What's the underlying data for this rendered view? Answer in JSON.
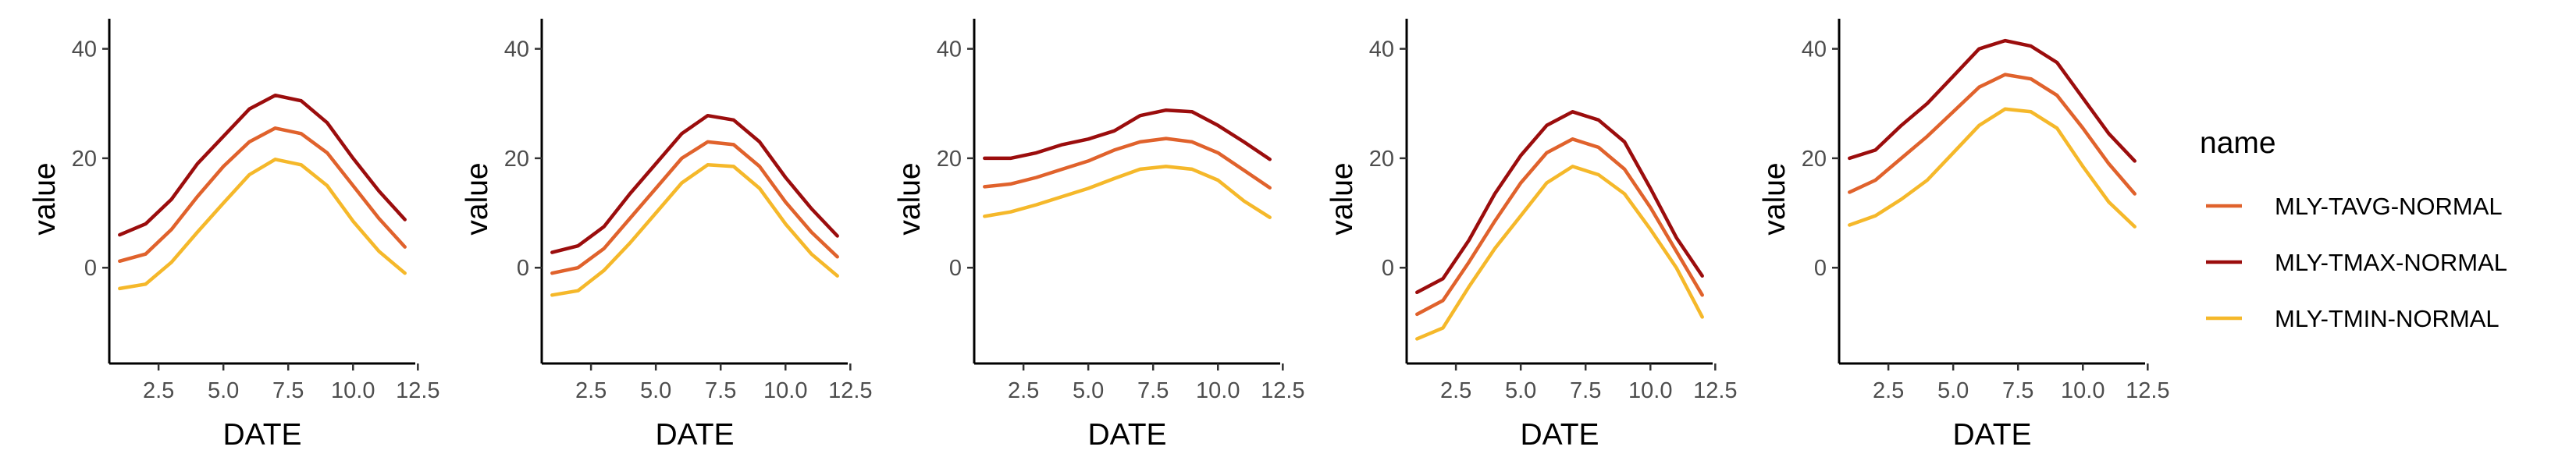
{
  "legend": {
    "title": "name",
    "placement": "right"
  },
  "colors": {
    "MLY-TAVG-NORMAL": "#e0622c",
    "MLY-TMAX-NORMAL": "#9b0d0d",
    "MLY-TMIN-NORMAL": "#f5b82a"
  },
  "chart_data": [
    {
      "type": "line",
      "xlabel": "DATE",
      "ylabel": "value",
      "xlim": [
        0.6,
        12.4
      ],
      "ylim": [
        -17.5,
        45.5
      ],
      "xticks": [
        "2.5",
        "5.0",
        "7.5",
        "10.0",
        "12.5"
      ],
      "yticks": [
        "0",
        "20",
        "40"
      ],
      "grid": false,
      "x": [
        1,
        2,
        3,
        4,
        5,
        6,
        7,
        8,
        9,
        10,
        11,
        12
      ],
      "series": [
        {
          "name": "MLY-TAVG-NORMAL",
          "values": [
            1.2,
            2.5,
            7,
            13,
            18.5,
            23,
            25.5,
            24.5,
            21,
            15,
            9,
            3.8
          ]
        },
        {
          "name": "MLY-TMAX-NORMAL",
          "values": [
            6,
            8,
            12.5,
            19,
            24,
            29,
            31.5,
            30.5,
            26.5,
            20,
            14,
            8.8
          ]
        },
        {
          "name": "MLY-TMIN-NORMAL",
          "values": [
            -3.8,
            -3,
            1,
            6.5,
            11.8,
            17,
            19.8,
            18.8,
            15,
            8.5,
            3,
            -1
          ]
        }
      ]
    },
    {
      "type": "line",
      "xlabel": "DATE",
      "ylabel": "value",
      "xlim": [
        0.6,
        12.4
      ],
      "ylim": [
        -17.5,
        45.5
      ],
      "xticks": [
        "2.5",
        "5.0",
        "7.5",
        "10.0",
        "12.5"
      ],
      "yticks": [
        "0",
        "20",
        "40"
      ],
      "grid": false,
      "x": [
        1,
        2,
        3,
        4,
        5,
        6,
        7,
        8,
        9,
        10,
        11,
        12
      ],
      "series": [
        {
          "name": "MLY-TAVG-NORMAL",
          "values": [
            -1,
            0,
            3.5,
            9,
            14.5,
            20,
            23,
            22.5,
            18.5,
            12,
            6.5,
            2
          ]
        },
        {
          "name": "MLY-TMAX-NORMAL",
          "values": [
            2.8,
            4,
            7.5,
            13.5,
            19,
            24.5,
            27.8,
            27,
            23,
            16.5,
            10.8,
            5.8
          ]
        },
        {
          "name": "MLY-TMIN-NORMAL",
          "values": [
            -5,
            -4.2,
            -0.5,
            4.5,
            10,
            15.5,
            18.8,
            18.5,
            14.5,
            8,
            2.5,
            -1.5
          ]
        }
      ]
    },
    {
      "type": "line",
      "xlabel": "DATE",
      "ylabel": "value",
      "xlim": [
        0.6,
        12.4
      ],
      "ylim": [
        -17.5,
        45.5
      ],
      "xticks": [
        "2.5",
        "5.0",
        "7.5",
        "10.0",
        "12.5"
      ],
      "yticks": [
        "0",
        "20",
        "40"
      ],
      "grid": false,
      "x": [
        1,
        2,
        3,
        4,
        5,
        6,
        7,
        8,
        9,
        10,
        11,
        12
      ],
      "series": [
        {
          "name": "MLY-TAVG-NORMAL",
          "values": [
            14.8,
            15.3,
            16.5,
            18,
            19.5,
            21.5,
            23,
            23.6,
            23,
            21,
            17.8,
            14.6
          ]
        },
        {
          "name": "MLY-TMAX-NORMAL",
          "values": [
            20,
            20,
            21,
            22.5,
            23.5,
            25,
            27.8,
            28.8,
            28.5,
            26,
            23,
            19.8
          ]
        },
        {
          "name": "MLY-TMIN-NORMAL",
          "values": [
            9.4,
            10.2,
            11.5,
            13,
            14.5,
            16.3,
            18,
            18.5,
            18,
            16,
            12.2,
            9.2
          ]
        }
      ]
    },
    {
      "type": "line",
      "xlabel": "DATE",
      "ylabel": "value",
      "xlim": [
        0.6,
        12.4
      ],
      "ylim": [
        -17.5,
        45.5
      ],
      "xticks": [
        "2.5",
        "5.0",
        "7.5",
        "10.0",
        "12.5"
      ],
      "yticks": [
        "0",
        "20",
        "40"
      ],
      "grid": false,
      "x": [
        1,
        2,
        3,
        4,
        5,
        6,
        7,
        8,
        9,
        10,
        11,
        12
      ],
      "series": [
        {
          "name": "MLY-TAVG-NORMAL",
          "values": [
            -8.5,
            -6,
            1,
            8.5,
            15.5,
            21,
            23.5,
            22,
            18,
            11,
            3,
            -5
          ]
        },
        {
          "name": "MLY-TMAX-NORMAL",
          "values": [
            -4.5,
            -2,
            5,
            13.5,
            20.5,
            26,
            28.5,
            27,
            23,
            14.5,
            5.5,
            -1.5
          ]
        },
        {
          "name": "MLY-TMIN-NORMAL",
          "values": [
            -13,
            -11,
            -3.5,
            3.5,
            9.5,
            15.5,
            18.5,
            17,
            13.5,
            7,
            0,
            -9
          ]
        }
      ]
    },
    {
      "type": "line",
      "xlabel": "DATE",
      "ylabel": "value",
      "xlim": [
        0.6,
        12.4
      ],
      "ylim": [
        -17.5,
        45.5
      ],
      "xticks": [
        "2.5",
        "5.0",
        "7.5",
        "10.0",
        "12.5"
      ],
      "yticks": [
        "0",
        "20",
        "40"
      ],
      "grid": false,
      "x": [
        1,
        2,
        3,
        4,
        5,
        6,
        7,
        8,
        9,
        10,
        11,
        12
      ],
      "series": [
        {
          "name": "MLY-TAVG-NORMAL",
          "values": [
            13.8,
            16,
            20,
            24,
            28.5,
            33,
            35.3,
            34.5,
            31.5,
            25.5,
            19,
            13.5
          ]
        },
        {
          "name": "MLY-TMAX-NORMAL",
          "values": [
            20,
            21.5,
            26,
            30,
            35,
            40,
            41.5,
            40.5,
            37.5,
            31,
            24.5,
            19.5
          ]
        },
        {
          "name": "MLY-TMIN-NORMAL",
          "values": [
            7.8,
            9.5,
            12.5,
            16,
            21,
            26,
            29,
            28.5,
            25.5,
            18.5,
            12,
            7.5
          ]
        }
      ]
    }
  ]
}
